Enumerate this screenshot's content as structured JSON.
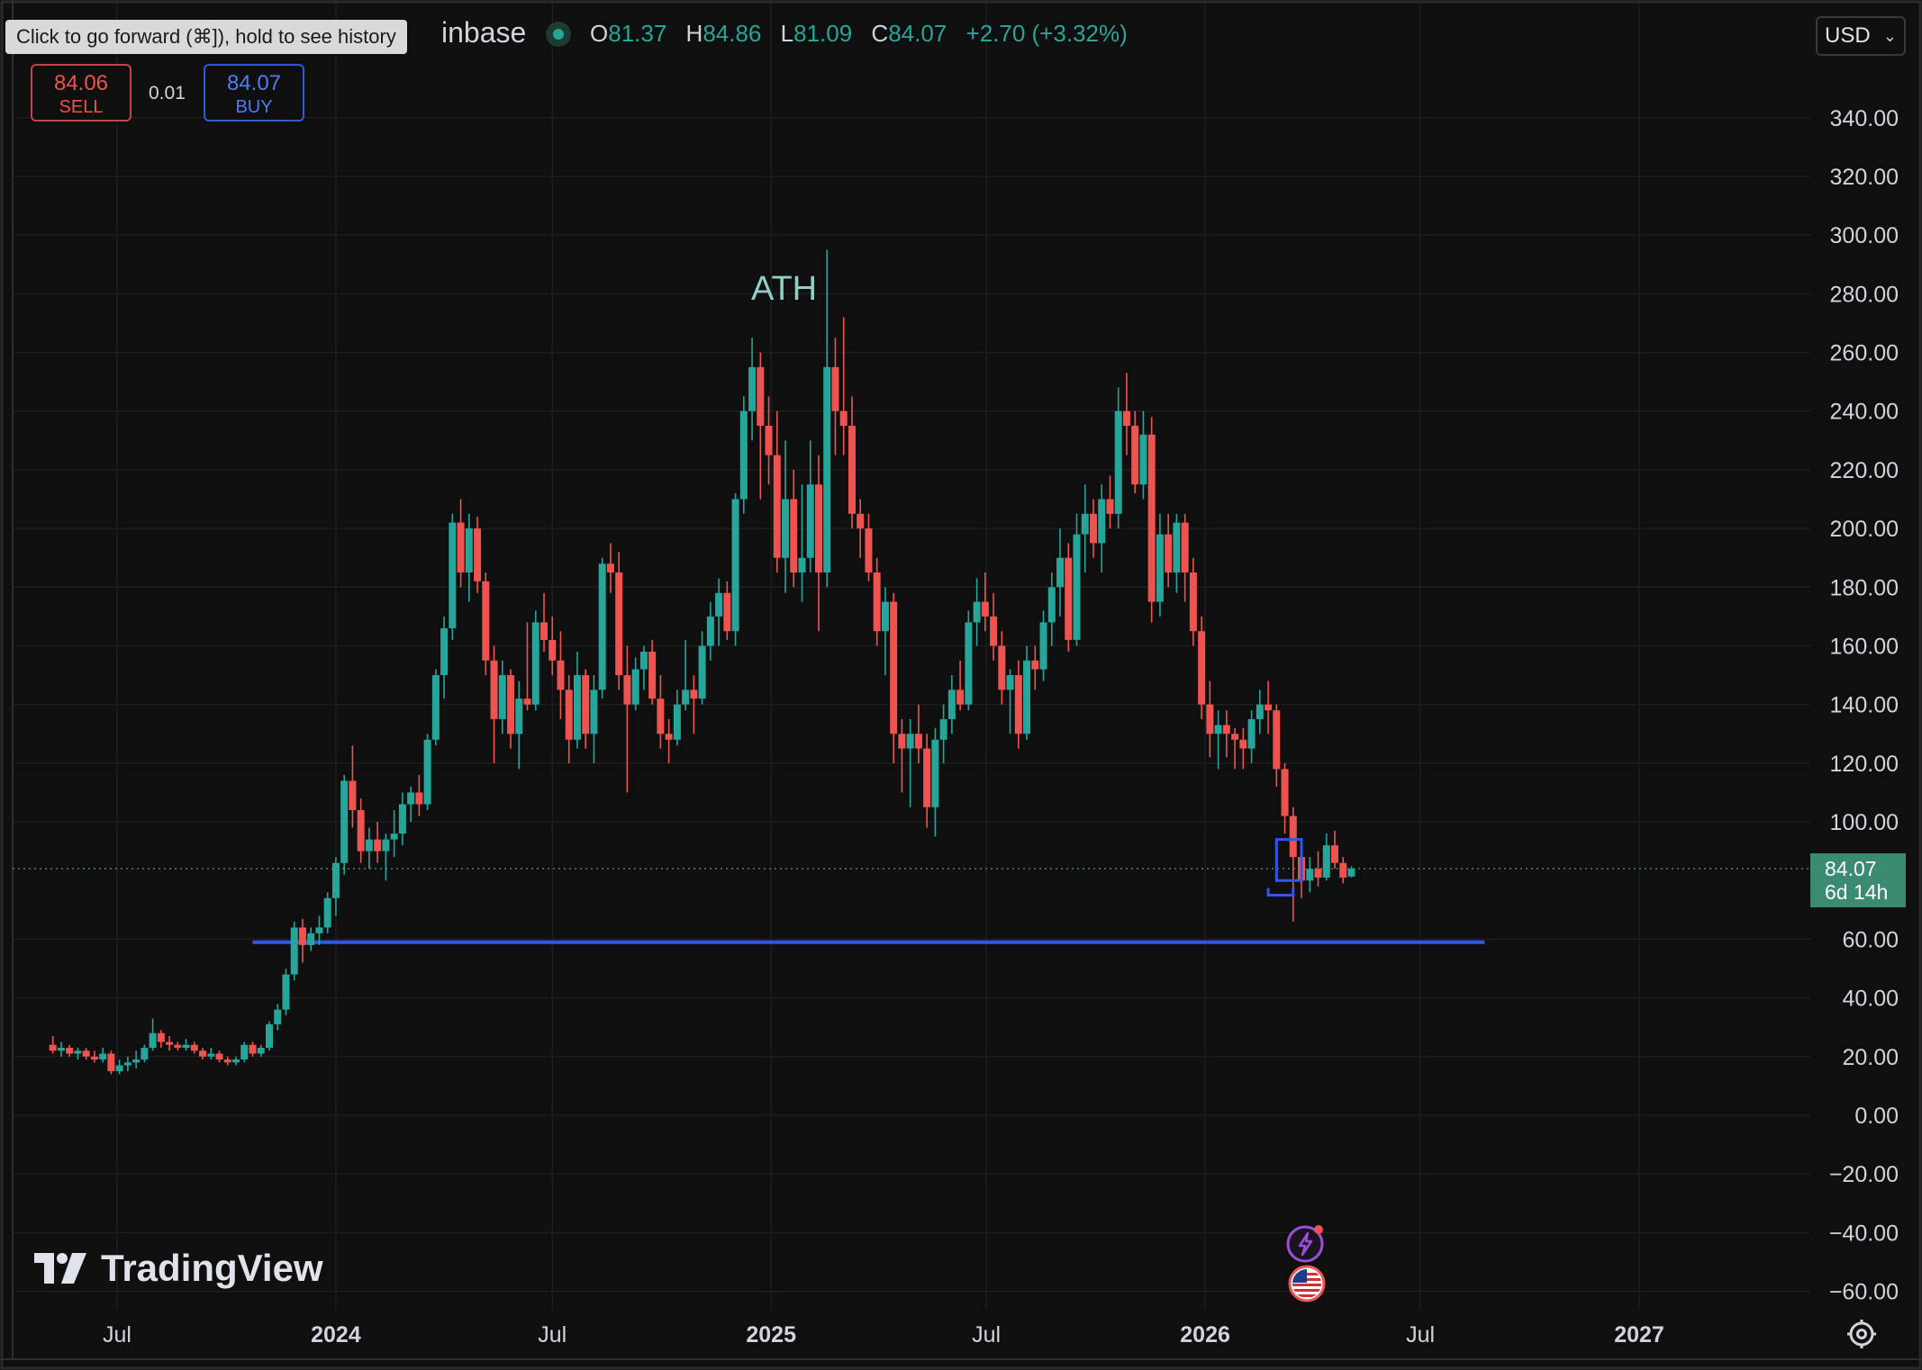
{
  "tooltip": "Click to go forward (⌘]), hold to see history",
  "header": {
    "symbol_fragment": "inbase",
    "ohlc": {
      "o_label": "O",
      "o_value": "81.37",
      "h_label": "H",
      "h_value": "84.86",
      "l_label": "L",
      "l_value": "81.09",
      "c_label": "C",
      "c_value": "84.07",
      "change": "+2.70 (+3.32%)"
    }
  },
  "trade": {
    "sell_price": "84.06",
    "sell_label": "SELL",
    "spread": "0.01",
    "buy_price": "84.07",
    "buy_label": "BUY"
  },
  "currency": {
    "value": "USD",
    "icon": "chevron-down-icon"
  },
  "price_tag": {
    "price": "84.07",
    "countdown": "6d 14h"
  },
  "logo": {
    "text": "TradingView",
    "icon": "tradingview-logo"
  },
  "colors": {
    "up": "#26a69a",
    "down": "#ef5350",
    "line": "#3456e8",
    "bg": "#0f0f0f",
    "grid": "#1e1e1e"
  },
  "chart_data": {
    "type": "candlestick",
    "title": "",
    "interval": "weekly",
    "x_tick_labels": [
      "Jul",
      "2024",
      "Jul",
      "2025",
      "Jul",
      "2026",
      "Jul",
      "2027"
    ],
    "x_tick_dates": [
      "2023-07-01",
      "2024-01-01",
      "2024-07-01",
      "2025-01-01",
      "2025-07-01",
      "2026-01-01",
      "2026-07-01",
      "2027-01-01"
    ],
    "y_ticks": [
      -60,
      -40,
      -20,
      0,
      20,
      40,
      60,
      100,
      120,
      140,
      160,
      180,
      200,
      220,
      240,
      260,
      280,
      300,
      320,
      340
    ],
    "ylim": [
      -70,
      360
    ],
    "last_price": 84.07,
    "annotations": [
      {
        "text": "ATH",
        "date": "2024-12-30",
        "price": 282
      }
    ],
    "horizontal_line": {
      "price": 59,
      "from": "2023-10-23",
      "to": "2026-08-24"
    },
    "rectangle": {
      "from": "2026-03-02",
      "to": "2026-03-23",
      "top": 94,
      "bottom": 80
    },
    "bracket": {
      "from": "2026-02-23",
      "to": "2026-03-16",
      "price": 75
    },
    "candles": [
      {
        "t": "2023-05-08",
        "o": 24,
        "h": 27,
        "l": 21,
        "c": 22
      },
      {
        "t": "2023-05-15",
        "o": 22,
        "h": 25,
        "l": 20,
        "c": 23
      },
      {
        "t": "2023-05-22",
        "o": 23,
        "h": 24,
        "l": 20,
        "c": 21
      },
      {
        "t": "2023-05-29",
        "o": 21,
        "h": 23,
        "l": 19,
        "c": 22
      },
      {
        "t": "2023-06-05",
        "o": 22,
        "h": 23,
        "l": 19,
        "c": 20
      },
      {
        "t": "2023-06-12",
        "o": 20,
        "h": 22,
        "l": 18,
        "c": 19
      },
      {
        "t": "2023-06-19",
        "o": 19,
        "h": 23,
        "l": 18,
        "c": 21
      },
      {
        "t": "2023-06-26",
        "o": 21,
        "h": 22,
        "l": 14,
        "c": 15
      },
      {
        "t": "2023-07-03",
        "o": 15,
        "h": 19,
        "l": 14,
        "c": 17
      },
      {
        "t": "2023-07-10",
        "o": 17,
        "h": 20,
        "l": 15,
        "c": 18
      },
      {
        "t": "2023-07-17",
        "o": 18,
        "h": 22,
        "l": 16,
        "c": 19
      },
      {
        "t": "2023-07-24",
        "o": 19,
        "h": 24,
        "l": 18,
        "c": 23
      },
      {
        "t": "2023-07-31",
        "o": 23,
        "h": 33,
        "l": 22,
        "c": 28
      },
      {
        "t": "2023-08-07",
        "o": 28,
        "h": 29,
        "l": 23,
        "c": 25
      },
      {
        "t": "2023-08-14",
        "o": 25,
        "h": 27,
        "l": 22,
        "c": 24
      },
      {
        "t": "2023-08-21",
        "o": 24,
        "h": 25,
        "l": 22,
        "c": 23
      },
      {
        "t": "2023-08-28",
        "o": 23,
        "h": 26,
        "l": 22,
        "c": 24
      },
      {
        "t": "2023-09-04",
        "o": 24,
        "h": 25,
        "l": 21,
        "c": 22
      },
      {
        "t": "2023-09-11",
        "o": 22,
        "h": 23,
        "l": 19,
        "c": 20
      },
      {
        "t": "2023-09-18",
        "o": 20,
        "h": 23,
        "l": 19,
        "c": 21
      },
      {
        "t": "2023-09-25",
        "o": 21,
        "h": 22,
        "l": 18,
        "c": 19
      },
      {
        "t": "2023-10-02",
        "o": 19,
        "h": 20,
        "l": 17,
        "c": 18
      },
      {
        "t": "2023-10-09",
        "o": 18,
        "h": 20,
        "l": 17,
        "c": 19
      },
      {
        "t": "2023-10-16",
        "o": 19,
        "h": 25,
        "l": 18,
        "c": 24
      },
      {
        "t": "2023-10-23",
        "o": 24,
        "h": 25,
        "l": 20,
        "c": 21
      },
      {
        "t": "2023-10-30",
        "o": 21,
        "h": 24,
        "l": 20,
        "c": 23
      },
      {
        "t": "2023-11-06",
        "o": 23,
        "h": 32,
        "l": 22,
        "c": 31
      },
      {
        "t": "2023-11-13",
        "o": 31,
        "h": 38,
        "l": 29,
        "c": 36
      },
      {
        "t": "2023-11-20",
        "o": 36,
        "h": 50,
        "l": 34,
        "c": 48
      },
      {
        "t": "2023-11-27",
        "o": 48,
        "h": 66,
        "l": 46,
        "c": 64
      },
      {
        "t": "2023-12-04",
        "o": 64,
        "h": 67,
        "l": 52,
        "c": 58
      },
      {
        "t": "2023-12-11",
        "o": 58,
        "h": 64,
        "l": 56,
        "c": 62
      },
      {
        "t": "2023-12-18",
        "o": 62,
        "h": 68,
        "l": 58,
        "c": 64
      },
      {
        "t": "2023-12-25",
        "o": 64,
        "h": 76,
        "l": 62,
        "c": 74
      },
      {
        "t": "2024-01-01",
        "o": 74,
        "h": 88,
        "l": 68,
        "c": 86
      },
      {
        "t": "2024-01-08",
        "o": 86,
        "h": 116,
        "l": 82,
        "c": 114
      },
      {
        "t": "2024-01-15",
        "o": 114,
        "h": 126,
        "l": 98,
        "c": 104
      },
      {
        "t": "2024-01-22",
        "o": 104,
        "h": 108,
        "l": 86,
        "c": 90
      },
      {
        "t": "2024-01-29",
        "o": 90,
        "h": 98,
        "l": 84,
        "c": 94
      },
      {
        "t": "2024-02-05",
        "o": 94,
        "h": 100,
        "l": 86,
        "c": 90
      },
      {
        "t": "2024-02-12",
        "o": 90,
        "h": 96,
        "l": 80,
        "c": 94
      },
      {
        "t": "2024-02-19",
        "o": 94,
        "h": 104,
        "l": 88,
        "c": 96
      },
      {
        "t": "2024-02-26",
        "o": 96,
        "h": 110,
        "l": 92,
        "c": 106
      },
      {
        "t": "2024-03-04",
        "o": 106,
        "h": 112,
        "l": 100,
        "c": 110
      },
      {
        "t": "2024-03-11",
        "o": 110,
        "h": 116,
        "l": 102,
        "c": 106
      },
      {
        "t": "2024-03-18",
        "o": 106,
        "h": 130,
        "l": 104,
        "c": 128
      },
      {
        "t": "2024-03-25",
        "o": 128,
        "h": 152,
        "l": 126,
        "c": 150
      },
      {
        "t": "2024-04-01",
        "o": 150,
        "h": 170,
        "l": 142,
        "c": 166
      },
      {
        "t": "2024-04-08",
        "o": 166,
        "h": 205,
        "l": 162,
        "c": 202
      },
      {
        "t": "2024-04-15",
        "o": 202,
        "h": 210,
        "l": 180,
        "c": 185
      },
      {
        "t": "2024-04-22",
        "o": 185,
        "h": 205,
        "l": 175,
        "c": 200
      },
      {
        "t": "2024-04-29",
        "o": 200,
        "h": 204,
        "l": 178,
        "c": 182
      },
      {
        "t": "2024-05-06",
        "o": 182,
        "h": 185,
        "l": 150,
        "c": 155
      },
      {
        "t": "2024-05-13",
        "o": 155,
        "h": 160,
        "l": 120,
        "c": 135
      },
      {
        "t": "2024-05-20",
        "o": 135,
        "h": 155,
        "l": 130,
        "c": 150
      },
      {
        "t": "2024-05-27",
        "o": 150,
        "h": 152,
        "l": 125,
        "c": 130
      },
      {
        "t": "2024-06-03",
        "o": 130,
        "h": 148,
        "l": 118,
        "c": 142
      },
      {
        "t": "2024-06-10",
        "o": 142,
        "h": 168,
        "l": 138,
        "c": 140
      },
      {
        "t": "2024-06-17",
        "o": 140,
        "h": 172,
        "l": 138,
        "c": 168
      },
      {
        "t": "2024-06-24",
        "o": 168,
        "h": 178,
        "l": 158,
        "c": 162
      },
      {
        "t": "2024-07-01",
        "o": 162,
        "h": 170,
        "l": 150,
        "c": 155
      },
      {
        "t": "2024-07-08",
        "o": 155,
        "h": 165,
        "l": 135,
        "c": 145
      },
      {
        "t": "2024-07-15",
        "o": 145,
        "h": 150,
        "l": 120,
        "c": 128
      },
      {
        "t": "2024-07-22",
        "o": 128,
        "h": 158,
        "l": 125,
        "c": 150
      },
      {
        "t": "2024-07-29",
        "o": 150,
        "h": 152,
        "l": 125,
        "c": 130
      },
      {
        "t": "2024-08-05",
        "o": 130,
        "h": 150,
        "l": 120,
        "c": 145
      },
      {
        "t": "2024-08-12",
        "o": 145,
        "h": 190,
        "l": 142,
        "c": 188
      },
      {
        "t": "2024-08-19",
        "o": 188,
        "h": 195,
        "l": 178,
        "c": 185
      },
      {
        "t": "2024-08-26",
        "o": 185,
        "h": 192,
        "l": 145,
        "c": 150
      },
      {
        "t": "2024-09-02",
        "o": 150,
        "h": 160,
        "l": 110,
        "c": 140
      },
      {
        "t": "2024-09-09",
        "o": 140,
        "h": 156,
        "l": 138,
        "c": 152
      },
      {
        "t": "2024-09-16",
        "o": 152,
        "h": 160,
        "l": 145,
        "c": 158
      },
      {
        "t": "2024-09-23",
        "o": 158,
        "h": 162,
        "l": 140,
        "c": 142
      },
      {
        "t": "2024-09-30",
        "o": 142,
        "h": 150,
        "l": 125,
        "c": 130
      },
      {
        "t": "2024-10-07",
        "o": 130,
        "h": 135,
        "l": 120,
        "c": 128
      },
      {
        "t": "2024-10-14",
        "o": 128,
        "h": 145,
        "l": 126,
        "c": 140
      },
      {
        "t": "2024-10-21",
        "o": 140,
        "h": 162,
        "l": 138,
        "c": 145
      },
      {
        "t": "2024-10-28",
        "o": 145,
        "h": 150,
        "l": 130,
        "c": 142
      },
      {
        "t": "2024-11-04",
        "o": 142,
        "h": 165,
        "l": 140,
        "c": 160
      },
      {
        "t": "2024-11-11",
        "o": 160,
        "h": 175,
        "l": 155,
        "c": 170
      },
      {
        "t": "2024-11-18",
        "o": 170,
        "h": 183,
        "l": 160,
        "c": 178
      },
      {
        "t": "2024-11-25",
        "o": 178,
        "h": 182,
        "l": 162,
        "c": 165
      },
      {
        "t": "2024-12-02",
        "o": 165,
        "h": 212,
        "l": 160,
        "c": 210
      },
      {
        "t": "2024-12-09",
        "o": 210,
        "h": 245,
        "l": 205,
        "c": 240
      },
      {
        "t": "2024-12-16",
        "o": 240,
        "h": 265,
        "l": 230,
        "c": 255
      },
      {
        "t": "2024-12-23",
        "o": 255,
        "h": 260,
        "l": 210,
        "c": 235
      },
      {
        "t": "2024-12-30",
        "o": 235,
        "h": 245,
        "l": 215,
        "c": 225
      },
      {
        "t": "2025-01-06",
        "o": 225,
        "h": 240,
        "l": 185,
        "c": 190
      },
      {
        "t": "2025-01-13",
        "o": 190,
        "h": 230,
        "l": 178,
        "c": 210
      },
      {
        "t": "2025-01-20",
        "o": 210,
        "h": 220,
        "l": 180,
        "c": 185
      },
      {
        "t": "2025-01-27",
        "o": 185,
        "h": 215,
        "l": 175,
        "c": 190
      },
      {
        "t": "2025-02-03",
        "o": 190,
        "h": 230,
        "l": 185,
        "c": 215
      },
      {
        "t": "2025-02-10",
        "o": 215,
        "h": 225,
        "l": 165,
        "c": 185
      },
      {
        "t": "2025-02-17",
        "o": 185,
        "h": 295,
        "l": 180,
        "c": 255
      },
      {
        "t": "2025-02-24",
        "o": 255,
        "h": 265,
        "l": 225,
        "c": 240
      },
      {
        "t": "2025-03-03",
        "o": 240,
        "h": 272,
        "l": 225,
        "c": 235
      },
      {
        "t": "2025-03-10",
        "o": 235,
        "h": 245,
        "l": 200,
        "c": 205
      },
      {
        "t": "2025-03-17",
        "o": 205,
        "h": 210,
        "l": 190,
        "c": 200
      },
      {
        "t": "2025-03-24",
        "o": 200,
        "h": 205,
        "l": 182,
        "c": 185
      },
      {
        "t": "2025-03-31",
        "o": 185,
        "h": 190,
        "l": 160,
        "c": 165
      },
      {
        "t": "2025-04-07",
        "o": 165,
        "h": 180,
        "l": 150,
        "c": 175
      },
      {
        "t": "2025-04-14",
        "o": 175,
        "h": 178,
        "l": 120,
        "c": 130
      },
      {
        "t": "2025-04-21",
        "o": 130,
        "h": 135,
        "l": 110,
        "c": 125
      },
      {
        "t": "2025-04-28",
        "o": 125,
        "h": 135,
        "l": 105,
        "c": 130
      },
      {
        "t": "2025-05-05",
        "o": 130,
        "h": 140,
        "l": 120,
        "c": 125
      },
      {
        "t": "2025-05-12",
        "o": 125,
        "h": 130,
        "l": 98,
        "c": 105
      },
      {
        "t": "2025-05-19",
        "o": 105,
        "h": 132,
        "l": 95,
        "c": 128
      },
      {
        "t": "2025-05-26",
        "o": 128,
        "h": 140,
        "l": 120,
        "c": 135
      },
      {
        "t": "2025-06-02",
        "o": 135,
        "h": 150,
        "l": 130,
        "c": 145
      },
      {
        "t": "2025-06-09",
        "o": 145,
        "h": 155,
        "l": 138,
        "c": 140
      },
      {
        "t": "2025-06-16",
        "o": 140,
        "h": 172,
        "l": 138,
        "c": 168
      },
      {
        "t": "2025-06-23",
        "o": 168,
        "h": 183,
        "l": 160,
        "c": 175
      },
      {
        "t": "2025-06-30",
        "o": 175,
        "h": 185,
        "l": 165,
        "c": 170
      },
      {
        "t": "2025-07-07",
        "o": 170,
        "h": 178,
        "l": 155,
        "c": 160
      },
      {
        "t": "2025-07-14",
        "o": 160,
        "h": 165,
        "l": 140,
        "c": 145
      },
      {
        "t": "2025-07-21",
        "o": 145,
        "h": 152,
        "l": 130,
        "c": 150
      },
      {
        "t": "2025-07-28",
        "o": 150,
        "h": 155,
        "l": 125,
        "c": 130
      },
      {
        "t": "2025-08-04",
        "o": 130,
        "h": 160,
        "l": 128,
        "c": 155
      },
      {
        "t": "2025-08-11",
        "o": 155,
        "h": 160,
        "l": 145,
        "c": 152
      },
      {
        "t": "2025-08-18",
        "o": 152,
        "h": 172,
        "l": 148,
        "c": 168
      },
      {
        "t": "2025-08-25",
        "o": 168,
        "h": 185,
        "l": 160,
        "c": 180
      },
      {
        "t": "2025-09-01",
        "o": 180,
        "h": 200,
        "l": 170,
        "c": 190
      },
      {
        "t": "2025-09-08",
        "o": 190,
        "h": 195,
        "l": 158,
        "c": 162
      },
      {
        "t": "2025-09-15",
        "o": 162,
        "h": 205,
        "l": 160,
        "c": 198
      },
      {
        "t": "2025-09-22",
        "o": 198,
        "h": 215,
        "l": 185,
        "c": 205
      },
      {
        "t": "2025-09-29",
        "o": 205,
        "h": 210,
        "l": 190,
        "c": 195
      },
      {
        "t": "2025-10-06",
        "o": 195,
        "h": 215,
        "l": 185,
        "c": 210
      },
      {
        "t": "2025-10-13",
        "o": 210,
        "h": 218,
        "l": 200,
        "c": 205
      },
      {
        "t": "2025-10-20",
        "o": 205,
        "h": 248,
        "l": 200,
        "c": 240
      },
      {
        "t": "2025-10-27",
        "o": 240,
        "h": 253,
        "l": 225,
        "c": 235
      },
      {
        "t": "2025-11-03",
        "o": 235,
        "h": 240,
        "l": 212,
        "c": 215
      },
      {
        "t": "2025-11-10",
        "o": 215,
        "h": 240,
        "l": 210,
        "c": 232
      },
      {
        "t": "2025-11-17",
        "o": 232,
        "h": 238,
        "l": 168,
        "c": 175
      },
      {
        "t": "2025-11-24",
        "o": 175,
        "h": 205,
        "l": 170,
        "c": 198
      },
      {
        "t": "2025-12-01",
        "o": 198,
        "h": 205,
        "l": 180,
        "c": 185
      },
      {
        "t": "2025-12-08",
        "o": 185,
        "h": 205,
        "l": 178,
        "c": 202
      },
      {
        "t": "2025-12-15",
        "o": 202,
        "h": 205,
        "l": 175,
        "c": 185
      },
      {
        "t": "2025-12-22",
        "o": 185,
        "h": 190,
        "l": 160,
        "c": 165
      },
      {
        "t": "2025-12-29",
        "o": 165,
        "h": 170,
        "l": 135,
        "c": 140
      },
      {
        "t": "2026-01-05",
        "o": 140,
        "h": 148,
        "l": 122,
        "c": 130
      },
      {
        "t": "2026-01-12",
        "o": 130,
        "h": 138,
        "l": 118,
        "c": 133
      },
      {
        "t": "2026-01-19",
        "o": 133,
        "h": 138,
        "l": 122,
        "c": 130
      },
      {
        "t": "2026-01-26",
        "o": 130,
        "h": 132,
        "l": 118,
        "c": 128
      },
      {
        "t": "2026-02-02",
        "o": 128,
        "h": 132,
        "l": 118,
        "c": 125
      },
      {
        "t": "2026-02-09",
        "o": 125,
        "h": 138,
        "l": 120,
        "c": 135
      },
      {
        "t": "2026-02-16",
        "o": 135,
        "h": 145,
        "l": 130,
        "c": 140
      },
      {
        "t": "2026-02-23",
        "o": 140,
        "h": 148,
        "l": 130,
        "c": 138
      },
      {
        "t": "2026-03-02",
        "o": 138,
        "h": 140,
        "l": 112,
        "c": 118
      },
      {
        "t": "2026-03-09",
        "o": 118,
        "h": 120,
        "l": 96,
        "c": 102
      },
      {
        "t": "2026-03-16",
        "o": 102,
        "h": 105,
        "l": 66,
        "c": 88
      },
      {
        "t": "2026-03-23",
        "o": 88,
        "h": 92,
        "l": 74,
        "c": 80
      },
      {
        "t": "2026-03-30",
        "o": 80,
        "h": 88,
        "l": 76,
        "c": 84
      },
      {
        "t": "2026-04-06",
        "o": 84,
        "h": 90,
        "l": 78,
        "c": 81
      },
      {
        "t": "2026-04-13",
        "o": 81,
        "h": 96,
        "l": 80,
        "c": 92
      },
      {
        "t": "2026-04-20",
        "o": 92,
        "h": 97,
        "l": 84,
        "c": 86
      },
      {
        "t": "2026-04-27",
        "o": 86,
        "h": 88,
        "l": 79,
        "c": 81
      },
      {
        "t": "2026-05-04",
        "o": 81.37,
        "h": 84.86,
        "l": 81.09,
        "c": 84.07
      }
    ]
  }
}
